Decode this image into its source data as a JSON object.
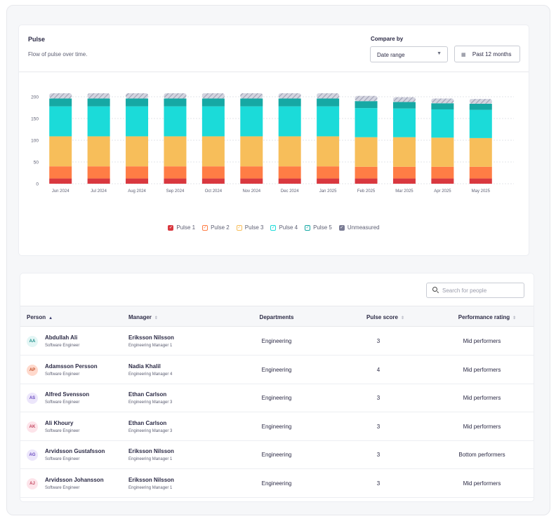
{
  "pulse": {
    "title": "Pulse",
    "subtitle": "Flow of pulse over time.",
    "compare_label": "Compare by",
    "compare_value": "Date range",
    "period": "Past 12 months"
  },
  "chart_data": {
    "type": "bar",
    "stacked": true,
    "categories": [
      "Jun 2024",
      "Jul 2024",
      "Aug 2024",
      "Sep 2024",
      "Oct 2024",
      "Nov 2024",
      "Dec 2024",
      "Jan 2025",
      "Feb 2025",
      "Mar 2025",
      "Apr 2025",
      "May 2025"
    ],
    "ylim": [
      0,
      200
    ],
    "yticks": [
      0,
      50,
      100,
      150,
      200
    ],
    "grid": true,
    "legend_position": "bottom",
    "series": [
      {
        "name": "Pulse 1",
        "color": "#d9383f",
        "values": [
          12,
          12,
          12,
          12,
          12,
          12,
          12,
          12,
          12,
          12,
          12,
          12
        ]
      },
      {
        "name": "Pulse 2",
        "color": "#ff7d45",
        "values": [
          28,
          28,
          28,
          28,
          28,
          28,
          28,
          28,
          27,
          27,
          27,
          27
        ]
      },
      {
        "name": "Pulse 3",
        "color": "#f7be5a",
        "values": [
          69,
          69,
          69,
          69,
          69,
          69,
          69,
          69,
          68,
          68,
          67,
          66
        ]
      },
      {
        "name": "Pulse 4",
        "color": "#1bdbd9",
        "values": [
          69,
          69,
          69,
          69,
          69,
          69,
          69,
          69,
          67,
          66,
          65,
          65
        ]
      },
      {
        "name": "Pulse 5",
        "color": "#16a8a4",
        "values": [
          18,
          18,
          18,
          18,
          18,
          18,
          18,
          18,
          16,
          15,
          14,
          14
        ]
      },
      {
        "name": "Unmeasured",
        "color": "#b3b4c6",
        "values": [
          12,
          12,
          12,
          12,
          12,
          12,
          12,
          12,
          12,
          11,
          11,
          11
        ]
      }
    ]
  },
  "search": {
    "placeholder": "Search for people"
  },
  "table": {
    "headers": [
      "Person",
      "Manager",
      "Departments",
      "Pulse score",
      "Performance rating"
    ],
    "rows": [
      {
        "initials": "AA",
        "avatar_bg": "#e3f6f5",
        "avatar_fg": "#1e8f8a",
        "name": "Abdullah Ali",
        "role": "Software Engineer",
        "manager": "Eriksson Nilsson",
        "manager_role": "Engineering Manager 1",
        "department": "Engineering",
        "score": "3",
        "rating": "Mid performers"
      },
      {
        "initials": "AP",
        "avatar_bg": "#ffd9cc",
        "avatar_fg": "#c2502b",
        "name": "Adamsson Persson",
        "role": "Software Engineer",
        "manager": "Nadia Khalil",
        "manager_role": "Engineering Manager 4",
        "department": "Engineering",
        "score": "4",
        "rating": "Mid performers"
      },
      {
        "initials": "AS",
        "avatar_bg": "#ece6fb",
        "avatar_fg": "#6a4bbf",
        "name": "Alfred Svensson",
        "role": "Software Engineer",
        "manager": "Ethan Carlson",
        "manager_role": "Engineering Manager 3",
        "department": "Engineering",
        "score": "3",
        "rating": "Mid performers"
      },
      {
        "initials": "AK",
        "avatar_bg": "#fde4ea",
        "avatar_fg": "#c2475f",
        "name": "Ali Khoury",
        "role": "Software Engineer",
        "manager": "Ethan Carlson",
        "manager_role": "Engineering Manager 3",
        "department": "Engineering",
        "score": "3",
        "rating": "Mid performers"
      },
      {
        "initials": "AG",
        "avatar_bg": "#ece6fb",
        "avatar_fg": "#6a4bbf",
        "name": "Arvidsson Gustafsson",
        "role": "Software Engineer",
        "manager": "Eriksson Nilsson",
        "manager_role": "Engineering Manager 1",
        "department": "Engineering",
        "score": "3",
        "rating": "Bottom performers"
      },
      {
        "initials": "AJ",
        "avatar_bg": "#fde4ea",
        "avatar_fg": "#c2475f",
        "name": "Arvidsson Johansson",
        "role": "Software Engineer",
        "manager": "Eriksson Nilsson",
        "manager_role": "Engineering Manager 1",
        "department": "Engineering",
        "score": "3",
        "rating": "Mid performers"
      }
    ]
  }
}
